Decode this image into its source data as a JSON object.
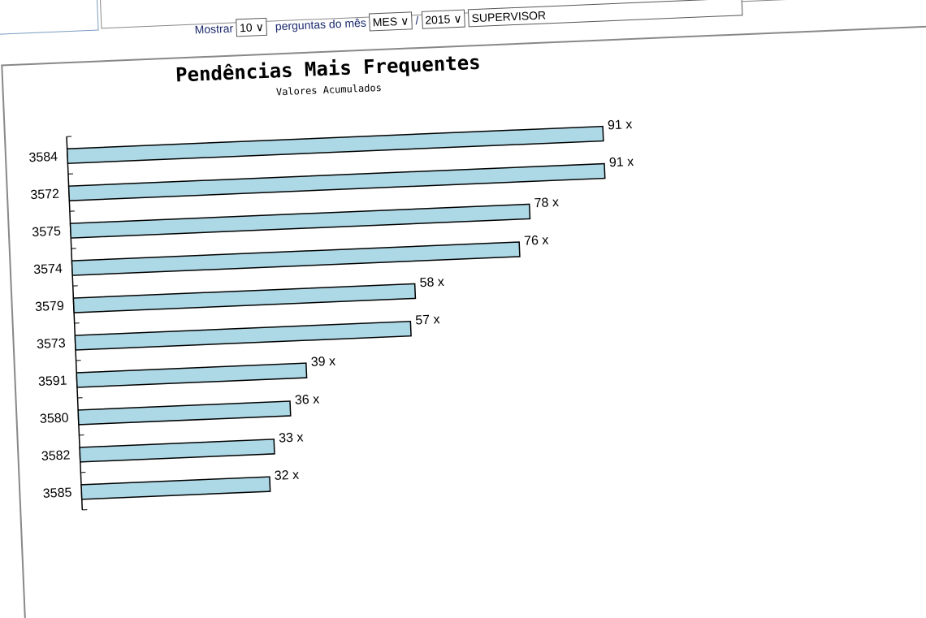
{
  "controls": {
    "show_label": "Mostrar",
    "show_value": "10",
    "month_label": "perguntas do mês",
    "month_value": "MES",
    "separator": "/",
    "year_value": "2015",
    "role_value": "SUPERVISOR"
  },
  "chart_data": {
    "type": "bar",
    "orientation": "horizontal",
    "title": "Pendências Mais Frequentes",
    "subtitle": "Valores Acumulados",
    "categories": [
      "3584",
      "3572",
      "3575",
      "3574",
      "3579",
      "3573",
      "3591",
      "3580",
      "3582",
      "3585"
    ],
    "values": [
      91,
      91,
      78,
      76,
      58,
      57,
      39,
      36,
      33,
      32
    ],
    "value_suffix": " x",
    "bar_color": "#add8e6",
    "xlabel": "",
    "ylabel": "",
    "xlim": [
      0,
      91
    ]
  }
}
